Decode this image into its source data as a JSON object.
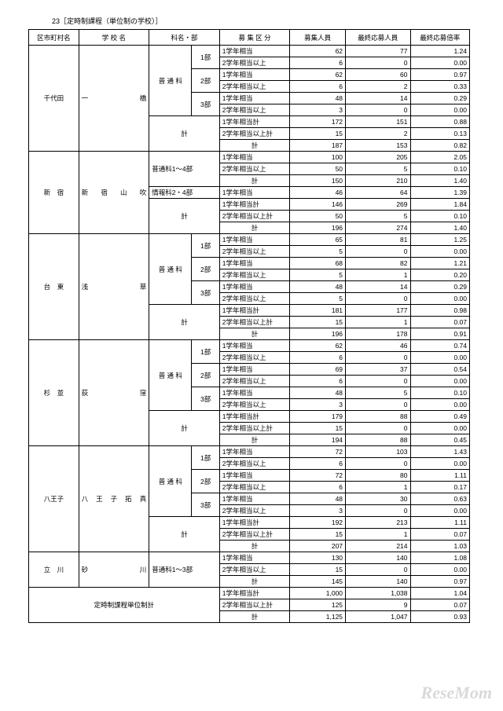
{
  "caption": "23［定時制課程（単位制の学校）］",
  "headers": [
    "区市町村名",
    "学 校 名",
    "科名・部",
    "募 集 区 分",
    "募集人員",
    "最終応募人員",
    "最終応募倍率"
  ],
  "watermark": "ReseMom",
  "labels": {
    "futsu": "普 通 科",
    "kei": "計",
    "soto1": "1学年相当計",
    "soto2": "2学年相当以上計",
    "g1": "1学年相当",
    "g2": "2学年相当以上",
    "b1": "1部",
    "b2": "2部",
    "b3": "3部",
    "shinjuku_k1": "普通科1～4部",
    "shinjuku_k2": "情報科2・4部",
    "tachikawa_k": "普通科1～3部",
    "grand": "定時制課程単位制計"
  },
  "wards": {
    "w1": "千代田",
    "w2": "新　宿",
    "w3": "台　東",
    "w4": "杉　並",
    "w5": "八王子",
    "w6": "立　川"
  },
  "schools": {
    "s1": "一　　　　橋",
    "s2": "新　宿　山　吹",
    "s3": "浅　　　　草",
    "s4": "荻　　　　窪",
    "s5": "八 王 子 拓 真",
    "s6": "砂　　　　川"
  },
  "r": {
    "a1": [
      62,
      77,
      "1.24"
    ],
    "a2": [
      6,
      0,
      "0.00"
    ],
    "a3": [
      62,
      60,
      "0.97"
    ],
    "a4": [
      6,
      2,
      "0.33"
    ],
    "a5": [
      48,
      14,
      "0.29"
    ],
    "a6": [
      3,
      0,
      "0.00"
    ],
    "a7": [
      172,
      151,
      "0.88"
    ],
    "a8": [
      15,
      2,
      "0.13"
    ],
    "a9": [
      187,
      153,
      "0.82"
    ],
    "b1": [
      100,
      205,
      "2.05"
    ],
    "b2": [
      50,
      5,
      "0.10"
    ],
    "b3": [
      150,
      210,
      "1.40"
    ],
    "b4": [
      46,
      64,
      "1.39"
    ],
    "b5": [
      146,
      269,
      "1.84"
    ],
    "b6": [
      50,
      5,
      "0.10"
    ],
    "b7": [
      196,
      274,
      "1.40"
    ],
    "c1": [
      65,
      81,
      "1.25"
    ],
    "c2": [
      5,
      0,
      "0.00"
    ],
    "c3": [
      68,
      82,
      "1.21"
    ],
    "c4": [
      5,
      1,
      "0.20"
    ],
    "c5": [
      48,
      14,
      "0.29"
    ],
    "c6": [
      5,
      0,
      "0.00"
    ],
    "c7": [
      181,
      177,
      "0.98"
    ],
    "c8": [
      15,
      1,
      "0.07"
    ],
    "c9": [
      196,
      178,
      "0.91"
    ],
    "d1": [
      62,
      46,
      "0.74"
    ],
    "d2": [
      6,
      0,
      "0.00"
    ],
    "d3": [
      69,
      37,
      "0.54"
    ],
    "d4": [
      6,
      0,
      "0.00"
    ],
    "d5": [
      48,
      5,
      "0.10"
    ],
    "d6": [
      3,
      0,
      "0.00"
    ],
    "d7": [
      179,
      88,
      "0.49"
    ],
    "d8": [
      15,
      0,
      "0.00"
    ],
    "d9": [
      194,
      88,
      "0.45"
    ],
    "e1": [
      72,
      103,
      "1.43"
    ],
    "e2": [
      6,
      0,
      "0.00"
    ],
    "e3": [
      72,
      80,
      "1.11"
    ],
    "e4": [
      6,
      1,
      "0.17"
    ],
    "e5": [
      48,
      30,
      "0.63"
    ],
    "e6": [
      3,
      0,
      "0.00"
    ],
    "e7": [
      192,
      213,
      "1.11"
    ],
    "e8": [
      15,
      1,
      "0.07"
    ],
    "e9": [
      207,
      214,
      "1.03"
    ],
    "f1": [
      130,
      140,
      "1.08"
    ],
    "f2": [
      15,
      0,
      "0.00"
    ],
    "f3": [
      145,
      140,
      "0.97"
    ],
    "g1": [
      "1,000",
      "1,038",
      "1.04"
    ],
    "g2": [
      125,
      9,
      "0.07"
    ],
    "g3": [
      "1,125",
      "1,047",
      "0.93"
    ]
  }
}
